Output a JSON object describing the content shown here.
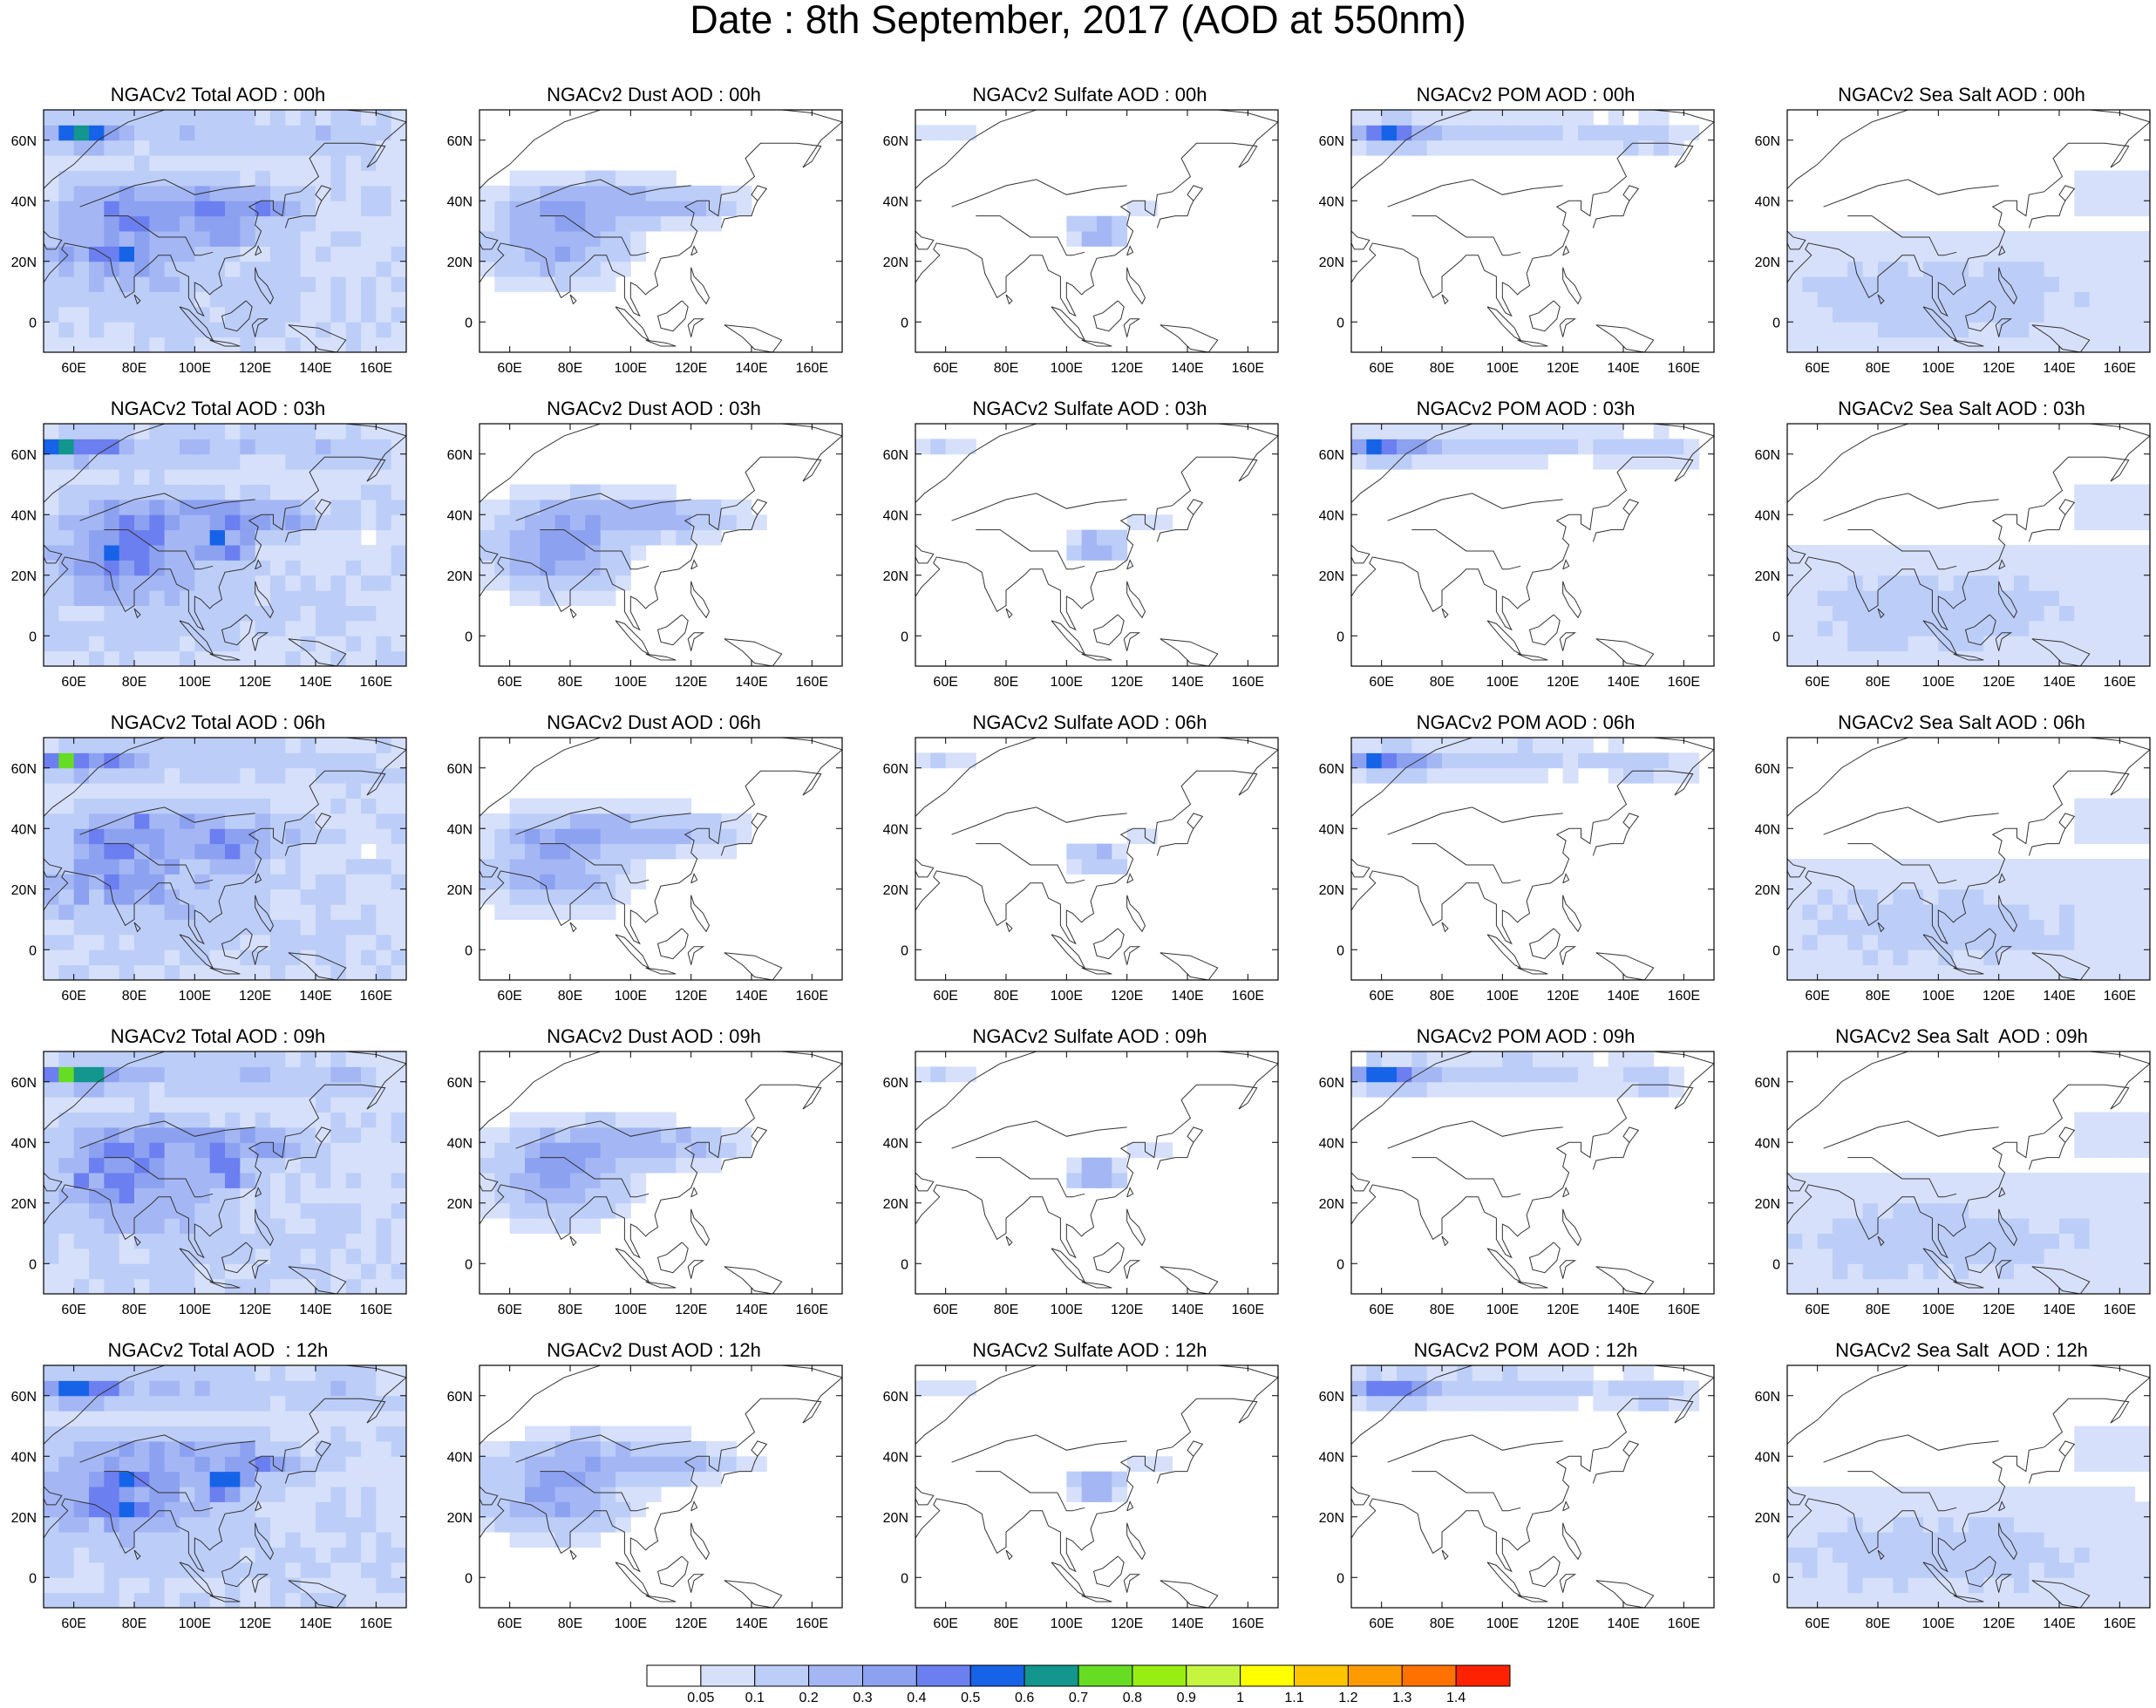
{
  "main_title": "Date : 8th September, 2017 (AOD at 550nm)",
  "axes": {
    "lon_ticks": [
      "60E",
      "80E",
      "100E",
      "120E",
      "140E",
      "160E"
    ],
    "lat_ticks": [
      "60N",
      "40N",
      "20N",
      "0"
    ]
  },
  "panels": [
    {
      "title": "NGACv2 Total AOD : 00h",
      "species": "total",
      "hour": "00h"
    },
    {
      "title": "NGACv2 Dust AOD : 00h",
      "species": "dust",
      "hour": "00h"
    },
    {
      "title": "NGACv2 Sulfate AOD : 00h",
      "species": "sulfate",
      "hour": "00h"
    },
    {
      "title": "NGACv2 POM AOD : 00h",
      "species": "pom",
      "hour": "00h"
    },
    {
      "title": "NGACv2 Sea Salt AOD : 00h",
      "species": "seasalt",
      "hour": "00h"
    },
    {
      "title": "NGACv2 Total AOD : 03h",
      "species": "total",
      "hour": "03h"
    },
    {
      "title": "NGACv2 Dust AOD : 03h",
      "species": "dust",
      "hour": "03h"
    },
    {
      "title": "NGACv2 Sulfate AOD : 03h",
      "species": "sulfate",
      "hour": "03h"
    },
    {
      "title": "NGACv2 POM AOD : 03h",
      "species": "pom",
      "hour": "03h"
    },
    {
      "title": "NGACv2 Sea Salt AOD : 03h",
      "species": "seasalt",
      "hour": "03h"
    },
    {
      "title": "NGACv2 Total AOD : 06h",
      "species": "total",
      "hour": "06h"
    },
    {
      "title": "NGACv2 Dust AOD : 06h",
      "species": "dust",
      "hour": "06h"
    },
    {
      "title": "NGACv2 Sulfate AOD : 06h",
      "species": "sulfate",
      "hour": "06h"
    },
    {
      "title": "NGACv2 POM AOD : 06h",
      "species": "pom",
      "hour": "06h"
    },
    {
      "title": "NGACv2 Sea Salt AOD : 06h",
      "species": "seasalt",
      "hour": "06h"
    },
    {
      "title": "NGACv2 Total AOD : 09h",
      "species": "total",
      "hour": "09h"
    },
    {
      "title": "NGACv2 Dust AOD : 09h",
      "species": "dust",
      "hour": "09h"
    },
    {
      "title": "NGACv2 Sulfate AOD : 09h",
      "species": "sulfate",
      "hour": "09h"
    },
    {
      "title": "NGACv2 POM AOD : 09h",
      "species": "pom",
      "hour": "09h"
    },
    {
      "title": "NGACv2 Sea Salt  AOD : 09h",
      "species": "seasalt",
      "hour": "09h"
    },
    {
      "title": "NGACv2 Total AOD  : 12h",
      "species": "total",
      "hour": "12h"
    },
    {
      "title": "NGACv2 Dust AOD : 12h",
      "species": "dust",
      "hour": "12h"
    },
    {
      "title": "NGACv2 Sulfate AOD : 12h",
      "species": "sulfate",
      "hour": "12h"
    },
    {
      "title": "NGACv2 POM  AOD : 12h",
      "species": "pom",
      "hour": "12h"
    },
    {
      "title": "NGACv2 Sea Salt  AOD : 12h",
      "species": "seasalt",
      "hour": "12h"
    }
  ],
  "colorbar": {
    "labels": [
      "0.05",
      "0.1",
      "0.2",
      "0.3",
      "0.4",
      "0.5",
      "0.6",
      "0.7",
      "0.8",
      "0.9",
      "1",
      "1.1",
      "1.2",
      "1.3",
      "1.4"
    ],
    "colors": [
      "#ffffff",
      "#d6e0fa",
      "#bccdf8",
      "#a4b7f4",
      "#8ca1f0",
      "#6c7ff0",
      "#1663e8",
      "#12968e",
      "#66dd22",
      "#99ee11",
      "#c5f53e",
      "#ffff00",
      "#ffc400",
      "#ff9a00",
      "#ff7200",
      "#ff2200"
    ]
  }
}
